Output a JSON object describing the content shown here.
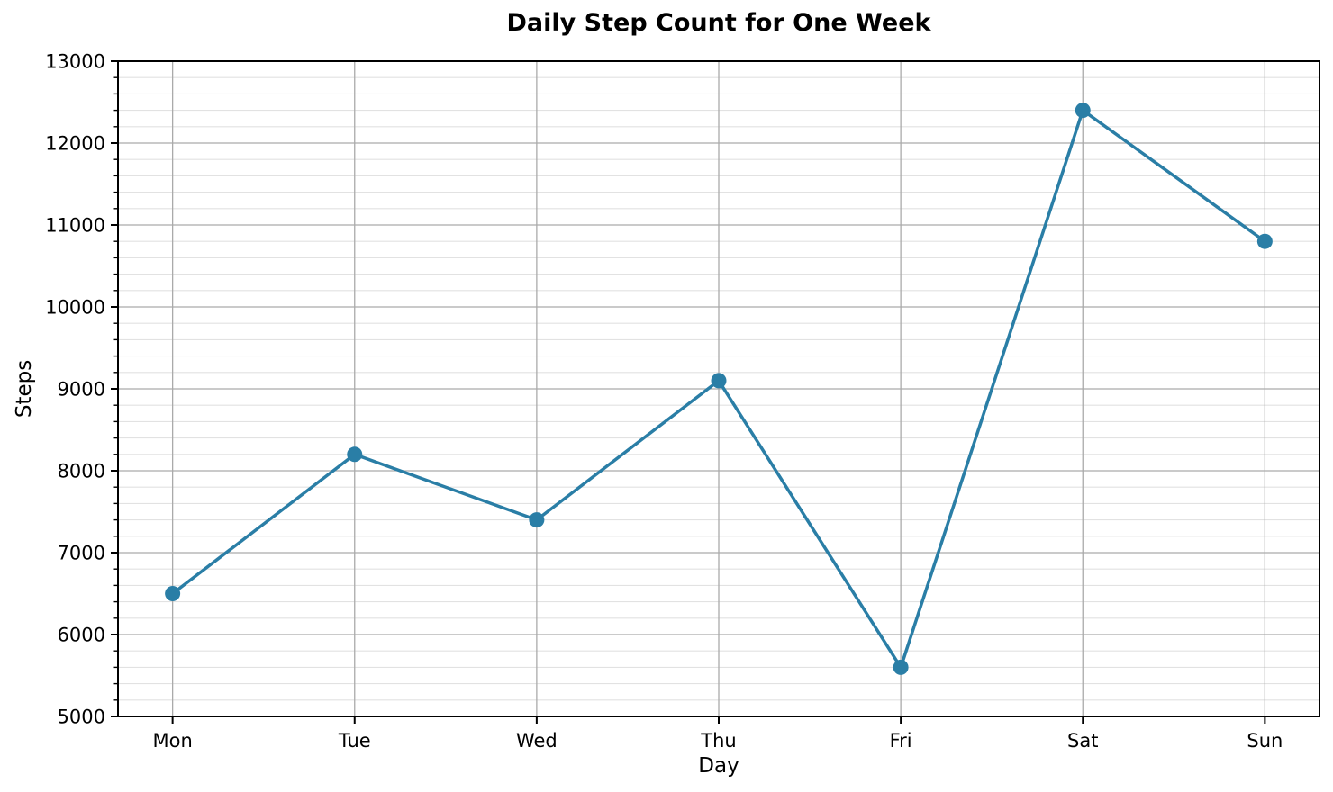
{
  "chart_data": {
    "type": "line",
    "title": "Daily Step Count for One Week",
    "xlabel": "Day",
    "ylabel": "Steps",
    "categories": [
      "Mon",
      "Tue",
      "Wed",
      "Thu",
      "Fri",
      "Sat",
      "Sun"
    ],
    "series": [
      {
        "name": "Steps",
        "values": [
          6500,
          8200,
          7400,
          9100,
          5600,
          12400,
          10800
        ]
      }
    ],
    "ylim": [
      5000,
      13000
    ],
    "y_major_step": 1000,
    "y_minor_step": 200,
    "grid": "horizontal major+minor, vertical major",
    "legend": "none",
    "colors": {
      "line": "#2a7ea6",
      "marker": "#2a7ea6",
      "grid_major": "#aaaaaa",
      "grid_minor": "#e2e2e2",
      "spine": "#000000",
      "background": "#ffffff"
    },
    "marker": "circle"
  }
}
